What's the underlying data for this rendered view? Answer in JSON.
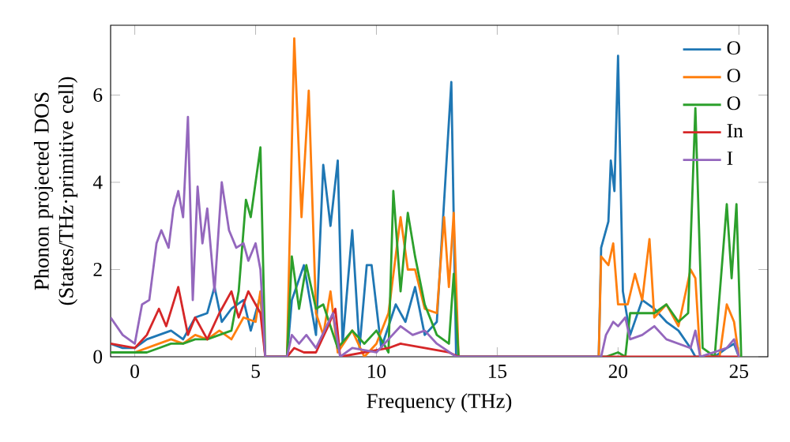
{
  "chart_data": {
    "type": "line",
    "xlabel": "Frequency (THz)",
    "ylabel": "Phonon projected DOS (States/THz·primitive cell)",
    "xlim": [
      -1,
      26.2
    ],
    "ylim": [
      0,
      7.6
    ],
    "xticks": [
      0,
      5,
      10,
      15,
      20,
      25
    ],
    "yticks": [
      0,
      2,
      4,
      6
    ],
    "legend": "top right",
    "marker": "none",
    "line_style": "solid",
    "grid": false,
    "series": [
      {
        "name": "O",
        "color": "#1f77b4",
        "x": [
          -1,
          -0.5,
          0,
          0.5,
          1,
          1.5,
          2,
          2.5,
          3,
          3.3,
          3.6,
          4,
          4.5,
          4.8,
          5.2,
          5.4,
          6.3,
          6.5,
          7,
          7.5,
          7.8,
          8.1,
          8.4,
          8.6,
          9,
          9.3,
          9.6,
          9.8,
          10.2,
          10.8,
          11.2,
          11.6,
          12,
          12.5,
          13.1,
          13.3,
          19.2,
          19.3,
          19.6,
          19.7,
          19.85,
          20,
          20.2,
          20.5,
          21,
          21.5,
          22,
          22.5,
          23,
          23.2,
          24,
          24.5,
          24.8,
          25
        ],
        "values": [
          0.3,
          0.2,
          0.2,
          0.4,
          0.5,
          0.6,
          0.4,
          0.9,
          1.0,
          1.6,
          0.8,
          1.1,
          1.3,
          0.6,
          1.4,
          0,
          0,
          1.3,
          2.1,
          0.5,
          4.4,
          3.0,
          4.5,
          0.3,
          2.9,
          0.2,
          2.1,
          2.1,
          0.2,
          1.2,
          0.8,
          1.6,
          0.5,
          0.8,
          6.3,
          0,
          0,
          2.5,
          3.1,
          4.5,
          3.8,
          6.9,
          1.5,
          0.5,
          1.3,
          1.1,
          0.8,
          0.6,
          0.2,
          0,
          0,
          0.2,
          0.3,
          0
        ]
      },
      {
        "name": "O",
        "color": "#ff7f0e",
        "x": [
          -0.5,
          0,
          0.5,
          1,
          1.5,
          2,
          2.5,
          3,
          3.5,
          4,
          4.5,
          5,
          5.2,
          5.4,
          6.3,
          6.6,
          6.9,
          7.2,
          7.5,
          7.8,
          8.1,
          8.4,
          9,
          9.5,
          10,
          10.5,
          11,
          11.3,
          11.6,
          12,
          12.5,
          12.8,
          13,
          13.2,
          13.4,
          19.2,
          19.3,
          19.6,
          19.8,
          20,
          20.4,
          20.7,
          21,
          21.3,
          21.5,
          22,
          22.5,
          23,
          23.2,
          23.4,
          24.2,
          24.5,
          24.8,
          25
        ],
        "values": [
          0.1,
          0.1,
          0.2,
          0.3,
          0.4,
          0.3,
          0.5,
          0.4,
          0.6,
          0.4,
          0.9,
          0.8,
          1.5,
          0,
          0,
          7.3,
          3.2,
          6.1,
          1.0,
          0.5,
          1.5,
          0.1,
          0.6,
          0,
          0.3,
          1.0,
          3.2,
          2.0,
          2.0,
          1.1,
          1.0,
          3.2,
          1.6,
          3.3,
          0,
          0,
          2.3,
          2.1,
          2.6,
          1.2,
          1.2,
          1.9,
          1.3,
          2.7,
          0.9,
          1.2,
          0.7,
          2.0,
          1.8,
          0,
          0,
          1.2,
          0.8,
          0
        ]
      },
      {
        "name": "O",
        "color": "#2ca02c",
        "x": [
          -1,
          -0.5,
          0,
          0.5,
          1,
          1.5,
          2,
          2.5,
          3,
          3.5,
          4,
          4.3,
          4.6,
          4.8,
          5.2,
          5.4,
          6.3,
          6.5,
          6.8,
          7.1,
          7.5,
          7.8,
          8.4,
          9,
          9.5,
          10,
          10.5,
          10.7,
          11,
          11.3,
          11.6,
          12,
          12.5,
          13,
          13.2,
          13.4,
          19.5,
          20,
          20.3,
          20.5,
          21,
          21.5,
          22,
          22.5,
          22.9,
          23.2,
          23.5,
          24,
          24.5,
          24.7,
          24.9,
          25.1
        ],
        "values": [
          0.1,
          0.1,
          0.1,
          0.1,
          0.2,
          0.3,
          0.3,
          0.4,
          0.4,
          0.5,
          0.6,
          1.5,
          3.6,
          3.2,
          4.8,
          0,
          0,
          2.3,
          1.1,
          2.1,
          1.1,
          1.2,
          0.2,
          0.6,
          0.3,
          0.6,
          0.1,
          3.8,
          1.5,
          3.3,
          2.3,
          1.2,
          0.5,
          0.3,
          1.9,
          0,
          0,
          0.1,
          0,
          1.0,
          1.0,
          1.0,
          1.2,
          0.8,
          1.0,
          5.7,
          0.2,
          0,
          3.5,
          1.8,
          3.5,
          0
        ]
      },
      {
        "name": "In",
        "color": "#d62728",
        "x": [
          -1,
          0,
          0.5,
          1,
          1.3,
          1.8,
          2.2,
          2.5,
          3,
          3.5,
          4,
          4.3,
          4.7,
          5.2,
          5.4,
          6.3,
          6.6,
          7,
          7.5,
          8,
          8.3,
          8.5,
          10.5,
          11,
          12,
          13,
          13.4,
          25
        ],
        "values": [
          0.3,
          0.2,
          0.5,
          1.1,
          0.7,
          1.6,
          0.5,
          0.9,
          0.4,
          1.0,
          1.5,
          0.9,
          1.5,
          1.0,
          0,
          0,
          0.2,
          0.1,
          0.1,
          0.7,
          1.1,
          0,
          0.2,
          0.3,
          0.2,
          0.1,
          0,
          0
        ]
      },
      {
        "name": "I",
        "color": "#9467bd",
        "x": [
          -1,
          -0.5,
          0,
          0.3,
          0.6,
          0.9,
          1.1,
          1.4,
          1.6,
          1.8,
          2,
          2.2,
          2.4,
          2.6,
          2.8,
          3,
          3.3,
          3.6,
          3.9,
          4.2,
          4.5,
          4.7,
          5,
          5.2,
          5.4,
          6.3,
          6.5,
          6.8,
          7.1,
          7.5,
          8.2,
          8.5,
          9,
          10,
          10.5,
          11,
          11.5,
          12,
          12.5,
          13.3,
          19.3,
          19.5,
          19.8,
          20,
          20.3,
          20.5,
          21,
          21.5,
          22,
          22.5,
          23,
          23.2,
          23.4,
          24.5,
          24.8,
          25
        ],
        "values": [
          0.9,
          0.5,
          0.3,
          1.2,
          1.3,
          2.6,
          2.9,
          2.5,
          3.4,
          3.8,
          3.2,
          5.5,
          1.3,
          3.9,
          2.6,
          3.4,
          1.5,
          4.0,
          2.9,
          2.5,
          2.6,
          2.2,
          2.6,
          2.0,
          0,
          0,
          0.5,
          0.3,
          0.5,
          0.2,
          1.0,
          0,
          0.2,
          0.1,
          0.4,
          0.7,
          0.5,
          0.6,
          0.3,
          0,
          0,
          0.5,
          0.8,
          0.7,
          0.9,
          0.4,
          0.5,
          0.7,
          0.4,
          0.3,
          0.2,
          0.6,
          0,
          0.2,
          0.4,
          0
        ]
      }
    ]
  }
}
